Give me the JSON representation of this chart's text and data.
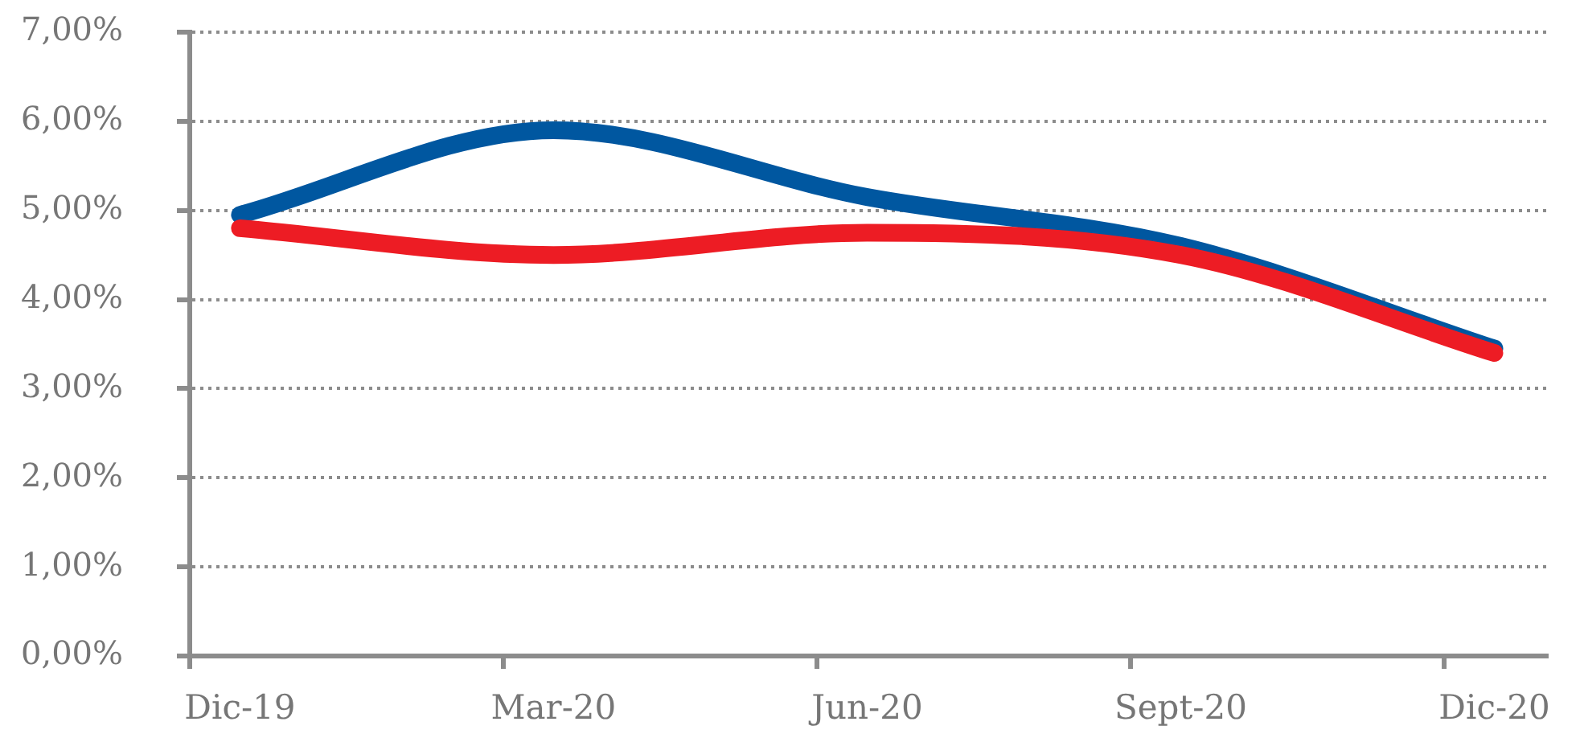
{
  "chart_data": {
    "type": "line",
    "categories": [
      "Dic-19",
      "Mar-20",
      "Jun-20",
      "Sept-20",
      "Dic-20"
    ],
    "series": [
      {
        "color": "#0057a0",
        "values": [
          4.95,
          5.9,
          5.15,
          4.6,
          3.45
        ]
      },
      {
        "color": "#ed1c24",
        "values": [
          4.8,
          4.5,
          4.75,
          4.5,
          3.4
        ]
      }
    ],
    "ylim": [
      0,
      7
    ],
    "yticks": [
      {
        "value": 0,
        "label": "0,00%"
      },
      {
        "value": 1,
        "label": "1,00%"
      },
      {
        "value": 2,
        "label": "2,00%"
      },
      {
        "value": 3,
        "label": "3,00%"
      },
      {
        "value": 4,
        "label": "4,00%"
      },
      {
        "value": 5,
        "label": "5,00%"
      },
      {
        "value": 6,
        "label": "6,00%"
      },
      {
        "value": 7,
        "label": "7,00%"
      }
    ],
    "grid": "y",
    "legend": false,
    "marker": "none",
    "line_style": "solid"
  }
}
